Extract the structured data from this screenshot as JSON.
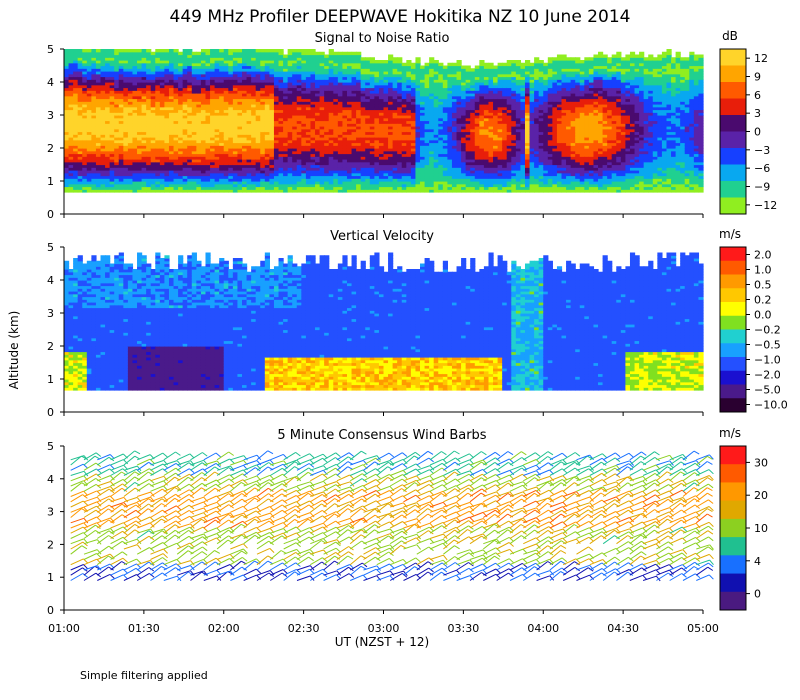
{
  "figure": {
    "title": "449 MHz Profiler DEEPWAVE Hokitika NZ 10 June 2014",
    "ylabel": "Altitude (km)",
    "xlabel": "UT  (NZST + 12)",
    "footnote": "Simple filtering applied",
    "x_ticks": [
      "01:00",
      "01:30",
      "02:00",
      "02:30",
      "03:00",
      "03:30",
      "04:00",
      "04:30",
      "05:00"
    ],
    "x_range_hours": [
      1.0,
      5.0
    ],
    "y_ticks": [
      "0",
      "1",
      "2",
      "3",
      "4",
      "5"
    ],
    "y_range_km": [
      0,
      5
    ]
  },
  "chart_data": [
    {
      "type": "heatmap",
      "title": "Signal to Noise Ratio",
      "units": "dB",
      "xlabel": "UT  (NZST + 12)",
      "ylabel": "Altitude (km)",
      "ylim": [
        0,
        5
      ],
      "colorbar": {
        "labels": [
          "12",
          "9",
          "6",
          "3",
          "0",
          "−3",
          "−6",
          "−9",
          "−12"
        ],
        "colors": [
          "#ffd42a",
          "#ffa500",
          "#ff5a00",
          "#e81e0a",
          "#4a0a6e",
          "#5a22a8",
          "#1640ff",
          "#08a8f0",
          "#20d090",
          "#90ee20"
        ]
      },
      "features": {
        "echo_base_km": 0.7,
        "echo_top_km": [
          4.8,
          4.7,
          4.7,
          4.6,
          4.4,
          4.2,
          4.3,
          4.5,
          4.5
        ],
        "peak_layer_km": [
          1.0,
          3.2
        ],
        "peak_snr_db": 12
      }
    },
    {
      "type": "heatmap",
      "title": "Vertical Velocity",
      "units": "m/s",
      "xlabel": "UT  (NZST + 12)",
      "ylabel": "Altitude (km)",
      "ylim": [
        0,
        5
      ],
      "colorbar": {
        "labels": [
          "2.0",
          "1.0",
          "0.5",
          "0.2",
          "0.0",
          "−0.2",
          "−0.5",
          "−1.0",
          "−2.0",
          "−5.0",
          "−10.0"
        ],
        "colors": [
          "#ff1a1a",
          "#ff5a00",
          "#ff9a00",
          "#ffc800",
          "#ffff00",
          "#80e020",
          "#20d0d0",
          "#18a0ff",
          "#2450ff",
          "#1a10d0",
          "#4a1a8a",
          "#2a0030"
        ]
      },
      "features": {
        "dominant_value_ms": -2.0,
        "updraft_layer_km": [
          0.7,
          1.7
        ],
        "updraft_period": [
          "02:15",
          "03:45"
        ]
      }
    },
    {
      "type": "scatter",
      "title": "5 Minute Consensus Wind Barbs",
      "units": "m/s",
      "xlabel": "UT  (NZST + 12)",
      "ylabel": "Altitude (km)",
      "ylim": [
        0,
        5
      ],
      "colorbar": {
        "labels": [
          "30",
          "20",
          "10",
          "4",
          "0"
        ],
        "colors": [
          "#ff1a1a",
          "#ff5a00",
          "#ff9800",
          "#e0a800",
          "#8cd020",
          "#20c090",
          "#1870ff",
          "#1010b0",
          "#4a1a80"
        ]
      },
      "features": {
        "jet_core_km": [
          2.5,
          3.5
        ],
        "jet_speed_ms": 22,
        "low_level_speed_ms": 6
      }
    }
  ]
}
